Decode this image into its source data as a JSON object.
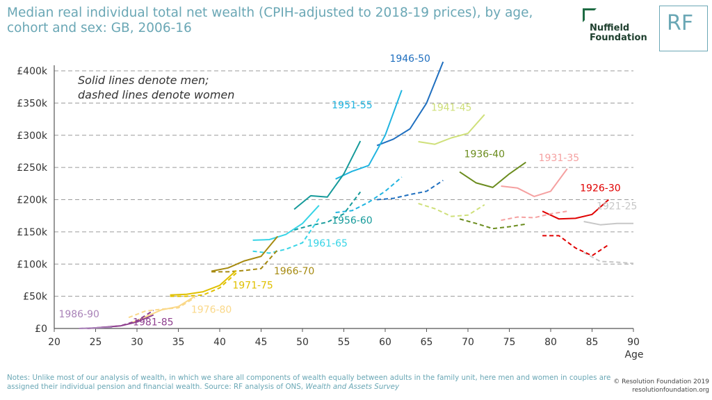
{
  "header": {
    "title": "Median real individual total net wealth (CPIH-adjusted to 2018-19 prices), by age, cohort and sex: GB, 2006-16",
    "logo_line1": "Nuffield",
    "logo_line2": "Foundation",
    "rf_logo": "RF"
  },
  "footer": {
    "notes_prefix": "Notes: Unlike most of our analysis of wealth, in which we share all components of wealth equally between adults in the family unit, here men and women in couples are assigned their individual pension and financial wealth. Source: RF analysis of ONS, ",
    "notes_source": "Wealth and Assets Survey",
    "credit_line1": "© Resolution Foundation 2019",
    "credit_line2": "resolutionfoundation.org"
  },
  "chart_data": {
    "type": "line",
    "title": "Median real individual total net wealth (CPIH-adjusted to 2018-19 prices), by age, cohort and sex: GB, 2006-16",
    "xlabel": "Age",
    "ylabel": "",
    "xlim": [
      20,
      90
    ],
    "ylim": [
      0,
      400000
    ],
    "x_ticks": [
      20,
      25,
      30,
      35,
      40,
      45,
      50,
      55,
      60,
      65,
      70,
      75,
      80,
      85,
      90
    ],
    "y_ticks": [
      {
        "value": 0,
        "label": "£0"
      },
      {
        "value": 50000,
        "label": "£50k"
      },
      {
        "value": 100000,
        "label": "£100k"
      },
      {
        "value": 150000,
        "label": "£150k"
      },
      {
        "value": 200000,
        "label": "£200k"
      },
      {
        "value": 250000,
        "label": "£250k"
      },
      {
        "value": 300000,
        "label": "£300k"
      },
      {
        "value": 350000,
        "label": "£350k"
      },
      {
        "value": 400000,
        "label": "£400k"
      }
    ],
    "grid": "horizontal dashed",
    "annotation_lines": [
      "Solid lines denote men;",
      "dashed lines denote women"
    ],
    "cohorts": [
      {
        "name": "1921-25",
        "color": "#c7c7c7",
        "men": [
          [
            84,
            166000
          ],
          [
            86,
            161000
          ],
          [
            88,
            163000
          ],
          [
            90,
            163000
          ]
        ],
        "women": [
          [
            84,
            118000
          ],
          [
            86,
            104000
          ],
          [
            88,
            103000
          ],
          [
            90,
            101000
          ]
        ]
      },
      {
        "name": "1926-30",
        "color": "#e00000",
        "men": [
          [
            79,
            182000
          ],
          [
            81,
            170000
          ],
          [
            83,
            171000
          ],
          [
            85,
            177000
          ],
          [
            87,
            200000
          ]
        ],
        "women": [
          [
            79,
            144000
          ],
          [
            81,
            144000
          ],
          [
            83,
            125000
          ],
          [
            85,
            113000
          ],
          [
            87,
            130000
          ]
        ]
      },
      {
        "name": "1931-35",
        "color": "#f5a0a0",
        "men": [
          [
            74,
            221000
          ],
          [
            76,
            218000
          ],
          [
            78,
            205000
          ],
          [
            80,
            213000
          ],
          [
            82,
            248000
          ]
        ],
        "women": [
          [
            74,
            168000
          ],
          [
            76,
            173000
          ],
          [
            78,
            172000
          ],
          [
            80,
            178000
          ],
          [
            82,
            182000
          ]
        ]
      },
      {
        "name": "1936-40",
        "color": "#6b8c1e",
        "men": [
          [
            69,
            243000
          ],
          [
            71,
            226000
          ],
          [
            73,
            219000
          ],
          [
            75,
            240000
          ],
          [
            77,
            258000
          ]
        ],
        "women": [
          [
            69,
            170000
          ],
          [
            71,
            163000
          ],
          [
            73,
            155000
          ],
          [
            75,
            158000
          ],
          [
            77,
            162000
          ]
        ]
      },
      {
        "name": "1941-45",
        "color": "#cfe07a",
        "men": [
          [
            64,
            290000
          ],
          [
            66,
            286000
          ],
          [
            68,
            296000
          ],
          [
            70,
            303000
          ],
          [
            72,
            332000
          ]
        ],
        "women": [
          [
            64,
            194000
          ],
          [
            66,
            186000
          ],
          [
            68,
            174000
          ],
          [
            70,
            176000
          ],
          [
            72,
            192000
          ]
        ]
      },
      {
        "name": "1946-50",
        "color": "#1f6fbf",
        "men": [
          [
            59,
            284000
          ],
          [
            61,
            294000
          ],
          [
            63,
            310000
          ],
          [
            65,
            350000
          ],
          [
            67,
            414000
          ]
        ],
        "women": [
          [
            59,
            200000
          ],
          [
            61,
            202000
          ],
          [
            63,
            208000
          ],
          [
            65,
            213000
          ],
          [
            67,
            230000
          ]
        ]
      },
      {
        "name": "1951-55",
        "color": "#1fb4e0",
        "men": [
          [
            54,
            232000
          ],
          [
            56,
            244000
          ],
          [
            58,
            253000
          ],
          [
            60,
            300000
          ],
          [
            62,
            370000
          ]
        ],
        "women": [
          [
            54,
            180000
          ],
          [
            56,
            183000
          ],
          [
            58,
            196000
          ],
          [
            60,
            213000
          ],
          [
            62,
            235000
          ]
        ]
      },
      {
        "name": "1956-60",
        "color": "#159a9a",
        "men": [
          [
            49,
            185000
          ],
          [
            51,
            206000
          ],
          [
            53,
            204000
          ],
          [
            55,
            240000
          ],
          [
            57,
            291000
          ]
        ],
        "women": [
          [
            49,
            153000
          ],
          [
            51,
            160000
          ],
          [
            53,
            165000
          ],
          [
            55,
            178000
          ],
          [
            57,
            212000
          ]
        ]
      },
      {
        "name": "1961-65",
        "color": "#37d4e6",
        "men": [
          [
            44,
            137000
          ],
          [
            46,
            138000
          ],
          [
            48,
            146000
          ],
          [
            50,
            163000
          ],
          [
            52,
            191000
          ]
        ],
        "women": [
          [
            44,
            120000
          ],
          [
            46,
            117000
          ],
          [
            48,
            123000
          ],
          [
            50,
            133000
          ],
          [
            52,
            171000
          ]
        ]
      },
      {
        "name": "1966-70",
        "color": "#a68a10",
        "men": [
          [
            39,
            89000
          ],
          [
            41,
            94000
          ],
          [
            43,
            105000
          ],
          [
            45,
            112000
          ],
          [
            47,
            143000
          ]
        ],
        "women": [
          [
            39,
            88000
          ],
          [
            41,
            88000
          ],
          [
            43,
            90000
          ],
          [
            45,
            93000
          ],
          [
            47,
            122000
          ]
        ]
      },
      {
        "name": "1971-75",
        "color": "#e0c000",
        "men": [
          [
            34,
            52000
          ],
          [
            36,
            53000
          ],
          [
            38,
            57000
          ],
          [
            40,
            67000
          ],
          [
            42,
            90000
          ]
        ],
        "women": [
          [
            34,
            50000
          ],
          [
            36,
            50000
          ],
          [
            38,
            52000
          ],
          [
            40,
            63000
          ],
          [
            42,
            86000
          ]
        ]
      },
      {
        "name": "1976-80",
        "color": "#fad889",
        "men": [
          [
            29,
            7000
          ],
          [
            31,
            18000
          ],
          [
            33,
            29000
          ],
          [
            35,
            34000
          ],
          [
            37,
            50000
          ]
        ],
        "women": [
          [
            29,
            17000
          ],
          [
            31,
            27000
          ],
          [
            33,
            30000
          ],
          [
            35,
            32000
          ],
          [
            37,
            48000
          ]
        ]
      },
      {
        "name": "1981-85",
        "color": "#8e3f8e",
        "men": [
          [
            24,
            0
          ],
          [
            26,
            2000
          ],
          [
            28,
            4000
          ],
          [
            30,
            10000
          ],
          [
            32,
            21000
          ]
        ],
        "women": [
          [
            24,
            0
          ],
          [
            26,
            2000
          ],
          [
            28,
            4000
          ],
          [
            30,
            12000
          ],
          [
            32,
            28000
          ]
        ]
      },
      {
        "name": "1986-90",
        "color": "#a982b8",
        "men": [
          [
            23,
            0
          ],
          [
            25,
            1000
          ],
          [
            27,
            2000
          ]
        ],
        "women": [
          [
            23,
            0
          ],
          [
            25,
            1000
          ],
          [
            27,
            2000
          ]
        ]
      }
    ]
  }
}
